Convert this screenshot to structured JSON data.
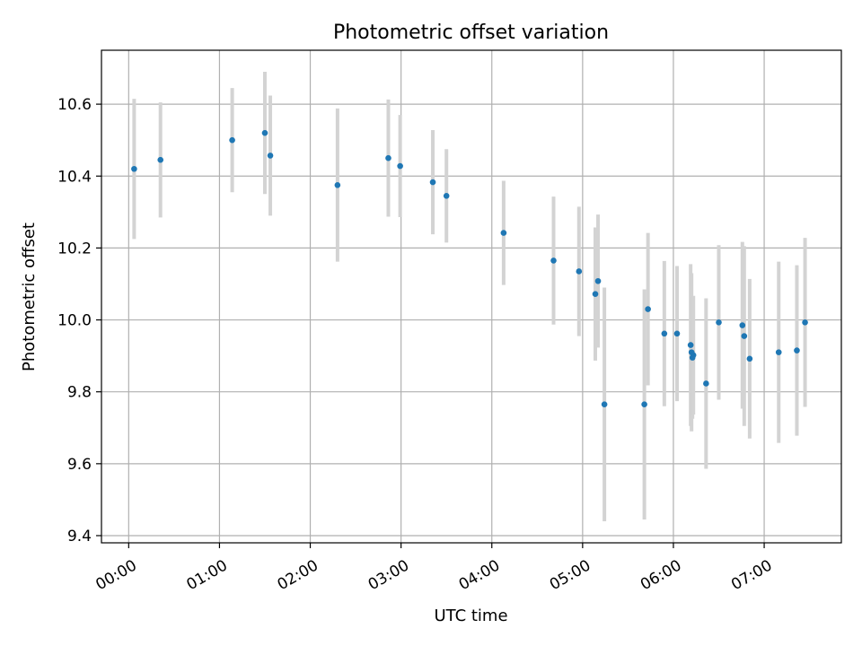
{
  "chart_data": {
    "type": "scatter",
    "title": "Photometric offset variation",
    "xlabel": "UTC time",
    "ylabel": "Photometric offset",
    "x_unit": "hours",
    "xlim": [
      -0.3,
      7.85
    ],
    "ylim": [
      9.38,
      10.75
    ],
    "x_ticks": [
      0,
      1,
      2,
      3,
      4,
      5,
      6,
      7
    ],
    "x_tick_labels": [
      "00:00",
      "01:00",
      "02:00",
      "03:00",
      "04:00",
      "05:00",
      "06:00",
      "07:00"
    ],
    "y_ticks": [
      9.4,
      9.6,
      9.8,
      10.0,
      10.2,
      10.4,
      10.6
    ],
    "y_tick_labels": [
      "9.4",
      "9.6",
      "9.8",
      "10.0",
      "10.2",
      "10.4",
      "10.6"
    ],
    "grid": true,
    "colors": {
      "point": "#1f77b4",
      "errorbar": "#d3d3d3",
      "grid": "#b0b0b0"
    },
    "points": [
      {
        "x": 0.06,
        "y": 10.42,
        "err": 0.195
      },
      {
        "x": 0.35,
        "y": 10.445,
        "err": 0.16
      },
      {
        "x": 1.14,
        "y": 10.5,
        "err": 0.145
      },
      {
        "x": 1.5,
        "y": 10.52,
        "err": 0.17
      },
      {
        "x": 1.56,
        "y": 10.457,
        "err": 0.167
      },
      {
        "x": 2.3,
        "y": 10.375,
        "err": 0.213
      },
      {
        "x": 2.86,
        "y": 10.45,
        "err": 0.163
      },
      {
        "x": 2.99,
        "y": 10.428,
        "err": 0.142
      },
      {
        "x": 3.35,
        "y": 10.383,
        "err": 0.145
      },
      {
        "x": 3.5,
        "y": 10.345,
        "err": 0.13
      },
      {
        "x": 4.13,
        "y": 10.242,
        "err": 0.145
      },
      {
        "x": 4.68,
        "y": 10.165,
        "err": 0.178
      },
      {
        "x": 4.96,
        "y": 10.135,
        "err": 0.18
      },
      {
        "x": 5.14,
        "y": 10.072,
        "err": 0.185
      },
      {
        "x": 5.17,
        "y": 10.108,
        "err": 0.185
      },
      {
        "x": 5.24,
        "y": 9.765,
        "err": 0.325
      },
      {
        "x": 5.68,
        "y": 9.765,
        "err": 0.32
      },
      {
        "x": 5.72,
        "y": 10.03,
        "err": 0.212
      },
      {
        "x": 5.9,
        "y": 9.962,
        "err": 0.202
      },
      {
        "x": 6.04,
        "y": 9.962,
        "err": 0.188
      },
      {
        "x": 6.19,
        "y": 9.93,
        "err": 0.225
      },
      {
        "x": 6.2,
        "y": 9.91,
        "err": 0.22
      },
      {
        "x": 6.21,
        "y": 9.895,
        "err": 0.17
      },
      {
        "x": 6.22,
        "y": 9.902,
        "err": 0.165
      },
      {
        "x": 6.36,
        "y": 9.823,
        "err": 0.237
      },
      {
        "x": 6.5,
        "y": 9.993,
        "err": 0.215
      },
      {
        "x": 6.76,
        "y": 9.985,
        "err": 0.232
      },
      {
        "x": 6.78,
        "y": 9.955,
        "err": 0.25
      },
      {
        "x": 6.84,
        "y": 9.892,
        "err": 0.222
      },
      {
        "x": 7.16,
        "y": 9.91,
        "err": 0.252
      },
      {
        "x": 7.36,
        "y": 9.915,
        "err": 0.237
      },
      {
        "x": 7.45,
        "y": 9.993,
        "err": 0.235
      }
    ]
  }
}
